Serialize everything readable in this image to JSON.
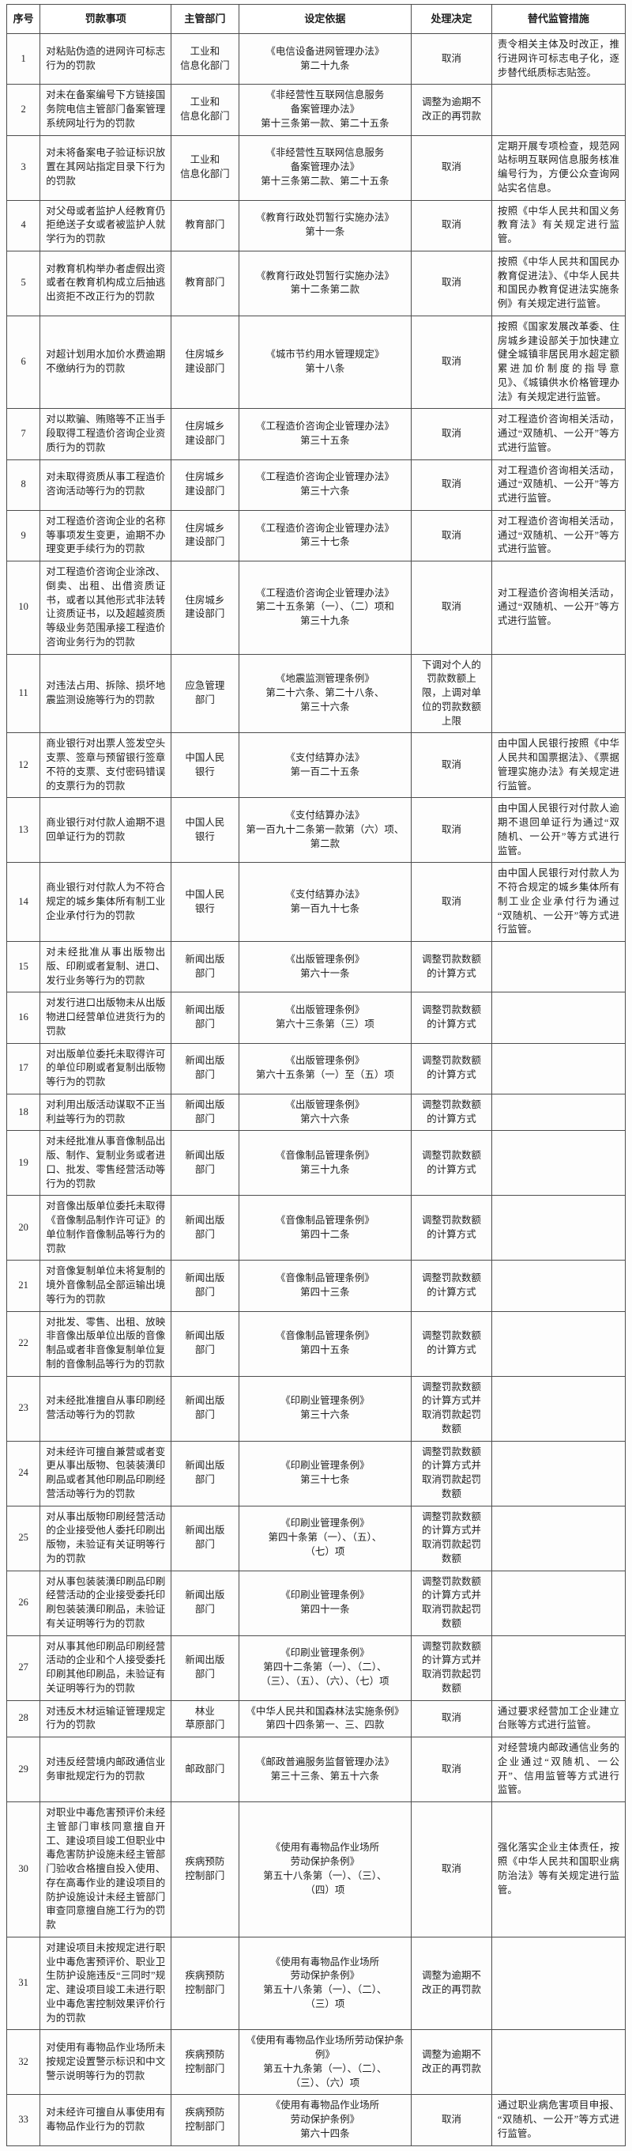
{
  "table": {
    "headers": [
      "序号",
      "罚款事项",
      "主管部门",
      "设定依据",
      "处理决定",
      "替代监管措施"
    ],
    "rows": [
      {
        "no": "1",
        "item": "对粘贴伪造的进网许可标志行为的罚款",
        "dept": "工业和\n信息化部门",
        "basis": "《电信设备进网管理办法》\n第二十九条",
        "decision": "取消",
        "measure": "责令相关主体及时改正，推行进网许可标志电子化，逐步替代纸质标志贴签。"
      },
      {
        "no": "2",
        "item": "对未在备案编号下方链接国务院电信主管部门备案管理系统网址行为的罚款",
        "dept": "工业和\n信息化部门",
        "basis": "《非经营性互联网信息服务\n备案管理办法》\n第十三条第一款、第二十五条",
        "decision": "调整为逾期不改正的再罚款",
        "measure": ""
      },
      {
        "no": "3",
        "item": "对未将备案电子验证标识放置在其网站指定目录下行为的罚款",
        "dept": "工业和\n信息化部门",
        "basis": "《非经营性互联网信息服务\n备案管理办法》\n第十三条第二款、第二十五条",
        "decision": "取消",
        "measure": "定期开展专项检查，规范网站标明互联网信息服务核准编号行为，方便公众查询网站实名信息。"
      },
      {
        "no": "4",
        "item": "对父母或者监护人经教育仍拒绝送子女或者被监护人就学行为的罚款",
        "dept": "教育部门",
        "basis": "《教育行政处罚暂行实施办法》\n第十一条",
        "decision": "取消",
        "measure": "按照《中华人民共和国义务教育法》有关规定进行监管。"
      },
      {
        "no": "5",
        "item": "对教育机构举办者虚假出资或者在教育机构成立后抽逃出资拒不改正行为的罚款",
        "dept": "教育部门",
        "basis": "《教育行政处罚暂行实施办法》\n第十二条第二款",
        "decision": "取消",
        "measure": "按照《中华人民共和国民办教育促进法》、《中华人民共和国民办教育促进法实施条例》有关规定进行监管。"
      },
      {
        "no": "6",
        "item": "对超计划用水加价水费逾期不缴纳行为的罚款",
        "dept": "住房城乡\n建设部门",
        "basis": "《城市节约用水管理规定》\n第十八条",
        "decision": "取消",
        "measure": "按照《国家发展改革委、住房城乡建设部关于加快建立健全城镇非居民用水超定额累进加价制度的指导意见》、《城镇供水价格管理办法》有关规定进行监管。"
      },
      {
        "no": "7",
        "item": "对以欺骗、贿赂等不正当手段取得工程造价咨询企业资质行为的罚款",
        "dept": "住房城乡\n建设部门",
        "basis": "《工程造价咨询企业管理办法》\n第三十五条",
        "decision": "取消",
        "measure": "对工程造价咨询相关活动，通过“双随机、一公开”等方式进行监管。"
      },
      {
        "no": "8",
        "item": "对未取得资质从事工程造价咨询活动等行为的罚款",
        "dept": "住房城乡\n建设部门",
        "basis": "《工程造价咨询企业管理办法》\n第三十六条",
        "decision": "取消",
        "measure": "对工程造价咨询相关活动，通过“双随机、一公开”等方式进行监管。"
      },
      {
        "no": "9",
        "item": "对工程造价咨询企业的名称等事项发生变更，逾期不办理变更手续行为的罚款",
        "dept": "住房城乡\n建设部门",
        "basis": "《工程造价咨询企业管理办法》\n第三十七条",
        "decision": "取消",
        "measure": "对工程造价咨询相关活动，通过“双随机、一公开”等方式进行监管。"
      },
      {
        "no": "10",
        "item": "对工程造价咨询企业涂改、倒卖、出租、出借资质证书，或者以其他形式非法转让资质证书，以及超越资质等级业务范围承接工程造价咨询业务行为的罚款",
        "dept": "住房城乡\n建设部门",
        "basis": "《工程造价咨询企业管理办法》\n第二十五条第（一）、（二）项和\n第三十九条",
        "decision": "取消",
        "measure": "对工程造价咨询相关活动，通过“双随机、一公开”等方式进行监管。"
      },
      {
        "no": "11",
        "item": "对违法占用、拆除、损坏地震监测设施等行为的罚款",
        "dept": "应急管理\n部门",
        "basis": "《地震监测管理条例》\n第二十六条、第二十八条、\n第三十六条",
        "decision": "下调对个人的罚款数额上限，上调对单位的罚款数额上限",
        "measure": ""
      },
      {
        "no": "12",
        "item": "商业银行对出票人签发空头支票、签章与预留银行签章不符的支票、支付密码错误的支票行为的罚款",
        "dept": "中国人民\n银行",
        "basis": "《支付结算办法》\n第一百二十五条",
        "decision": "取消",
        "measure": "由中国人民银行按照《中华人民共和国票据法》、《票据管理实施办法》有关规定进行监管。"
      },
      {
        "no": "13",
        "item": "商业银行对付款人逾期不退回单证行为的罚款",
        "dept": "中国人民\n银行",
        "basis": "《支付结算办法》\n第一百九十二条第一款第（六）项、\n第二款",
        "decision": "取消",
        "measure": "由中国人民银行对付款人逾期不退回单证行为通过“双随机、一公开”等方式进行监管。"
      },
      {
        "no": "14",
        "item": "商业银行对付款人为不符合规定的城乡集体所有制工业企业承付行为的罚款",
        "dept": "中国人民\n银行",
        "basis": "《支付结算办法》\n第一百九十七条",
        "decision": "取消",
        "measure": "由中国人民银行对付款人为不符合规定的城乡集体所有制工业企业承付行为通过“双随机、一公开”等方式进行监管。"
      },
      {
        "no": "15",
        "item": "对未经批准从事出版物出版、印刷或者复制、进口、发行业务等行为的罚款",
        "dept": "新闻出版\n部门",
        "basis": "《出版管理条例》\n第六十一条",
        "decision": "调整罚款数额的计算方式",
        "measure": ""
      },
      {
        "no": "16",
        "item": "对发行进口出版物未从出版物进口经营单位进货行为的罚款",
        "dept": "新闻出版\n部门",
        "basis": "《出版管理条例》\n第六十三条第（三）项",
        "decision": "调整罚款数额的计算方式",
        "measure": ""
      },
      {
        "no": "17",
        "item": "对出版单位委托未取得许可的单位印刷或者复制出版物等行为的罚款",
        "dept": "新闻出版\n部门",
        "basis": "《出版管理条例》\n第六十五条第（一）至（五）项",
        "decision": "调整罚款数额的计算方式",
        "measure": ""
      },
      {
        "no": "18",
        "item": "对利用出版活动谋取不正当利益等行为的罚款",
        "dept": "新闻出版\n部门",
        "basis": "《出版管理条例》\n第六十六条",
        "decision": "调整罚款数额的计算方式",
        "measure": ""
      },
      {
        "no": "19",
        "item": "对未经批准从事音像制品出版、制作、复制业务或者进口、批发、零售经营活动等行为的罚款",
        "dept": "新闻出版\n部门",
        "basis": "《音像制品管理条例》\n第三十九条",
        "decision": "调整罚款数额的计算方式",
        "measure": ""
      },
      {
        "no": "20",
        "item": "对音像出版单位委托未取得《音像制品制作许可证》的单位制作音像制品等行为的罚款",
        "dept": "新闻出版\n部门",
        "basis": "《音像制品管理条例》\n第四十二条",
        "decision": "调整罚款数额的计算方式",
        "measure": ""
      },
      {
        "no": "21",
        "item": "对音像复制单位未将复制的境外音像制品全部运输出境等行为的罚款",
        "dept": "新闻出版\n部门",
        "basis": "《音像制品管理条例》\n第四十三条",
        "decision": "调整罚款数额的计算方式",
        "measure": ""
      },
      {
        "no": "22",
        "item": "对批发、零售、出租、放映非音像出版单位出版的音像制品或者非音像复制单位复制的音像制品等行为的罚款",
        "dept": "新闻出版\n部门",
        "basis": "《音像制品管理条例》\n第四十五条",
        "decision": "调整罚款数额的计算方式",
        "measure": ""
      },
      {
        "no": "23",
        "item": "对未经批准擅自从事印刷经营活动等行为的罚款",
        "dept": "新闻出版\n部门",
        "basis": "《印刷业管理条例》\n第三十六条",
        "decision": "调整罚款数额的计算方式并取消罚款起罚数额",
        "measure": ""
      },
      {
        "no": "24",
        "item": "对未经许可擅自兼营或者变更从事出版物、包装装潢印刷品或者其他印刷品印刷经营活动等行为的罚款",
        "dept": "新闻出版\n部门",
        "basis": "《印刷业管理条例》\n第三十七条",
        "decision": "调整罚款数额的计算方式并取消罚款起罚数额",
        "measure": ""
      },
      {
        "no": "25",
        "item": "对从事出版物印刷经营活动的企业接受他人委托印刷出版物，未验证有关证明等行为的罚款",
        "dept": "新闻出版\n部门",
        "basis": "《印刷业管理条例》\n第四十条第（一）、（五）、\n（七）项",
        "decision": "调整罚款数额的计算方式并取消罚款起罚数额",
        "measure": ""
      },
      {
        "no": "26",
        "item": "对从事包装装潢印刷品印刷经营活动的企业接受委托印刷包装装潢印刷品，未验证有关证明等行为的罚款",
        "dept": "新闻出版\n部门",
        "basis": "《印刷业管理条例》\n第四十一条",
        "decision": "调整罚款数额的计算方式并取消罚款起罚数额",
        "measure": ""
      },
      {
        "no": "27",
        "item": "对从事其他印刷品印刷经营活动的企业和个人接受委托印刷其他印刷品，未验证有关证明等行为的罚款",
        "dept": "新闻出版\n部门",
        "basis": "《印刷业管理条例》\n第四十二条第（一）、（二）、\n（三）、（五）、（六）、（七）项",
        "decision": "调整罚款数额的计算方式并取消罚款起罚数额",
        "measure": ""
      },
      {
        "no": "28",
        "item": "对违反木材运输证管理规定行为的罚款",
        "dept": "林业\n草原部门",
        "basis": "《中华人民共和国森林法实施条例》\n第四十四条第一、三、四款",
        "decision": "取消",
        "measure": "通过要求经营加工企业建立台账等方式进行监管。"
      },
      {
        "no": "29",
        "item": "对违反经营境内邮政通信业务审批规定行为的罚款",
        "dept": "邮政部门",
        "basis": "《邮政普遍服务监督管理办法》\n第三十三条、第五十六条",
        "decision": "取消",
        "measure": "对经营境内邮政通信业务的企业通过“双随机、一公开”、信用监管等方式进行监管。"
      },
      {
        "no": "30",
        "item": "对职业中毒危害预评价未经主管部门审核同意擅自开工、建设项目竣工但职业中毒危害防护设施未经主管部门验收合格擅自投入使用、存在高毒作业的建设项目的防护设施设计未经主管部门审查同意擅自施工行为的罚款",
        "dept": "疾病预防\n控制部门",
        "basis": "《使用有毒物品作业场所\n劳动保护条例》\n第五十八条第（一）、（三）、\n（四）项",
        "decision": "取消",
        "measure": "强化落实企业主体责任，按照《中华人民共和国职业病防治法》等有关规定进行监管。"
      },
      {
        "no": "31",
        "item": "对建设项目未按规定进行职业中毒危害预评价、职业卫生防护设施违反“三同时”规定、建设项目竣工未进行职业中毒危害控制效果评价行为的罚款",
        "dept": "疾病预防\n控制部门",
        "basis": "《使用有毒物品作业场所\n劳动保护条例》\n第五十八条第（一）、（二）、\n（三）项",
        "decision": "调整为逾期不改正的再罚款",
        "measure": ""
      },
      {
        "no": "32",
        "item": "对使用有毒物品作业场所未按规定设置警示标识和中文警示说明等行为的罚款",
        "dept": "疾病预防\n控制部门",
        "basis": "《使用有毒物品作业场所劳动保护条例》\n第五十九条第（一）、（二）、\n（三）、（六）项",
        "decision": "调整为逾期不改正的再罚款",
        "measure": ""
      },
      {
        "no": "33",
        "item": "对未经许可擅自从事使用有毒物品作业行为的罚款",
        "dept": "疾病预防\n控制部门",
        "basis": "《使用有毒物品作业场所\n劳动保护条例》\n第六十四条",
        "decision": "取消",
        "measure": "通过职业病危害项目申报、“双随机、一公开”等方式进行监管。"
      }
    ]
  }
}
